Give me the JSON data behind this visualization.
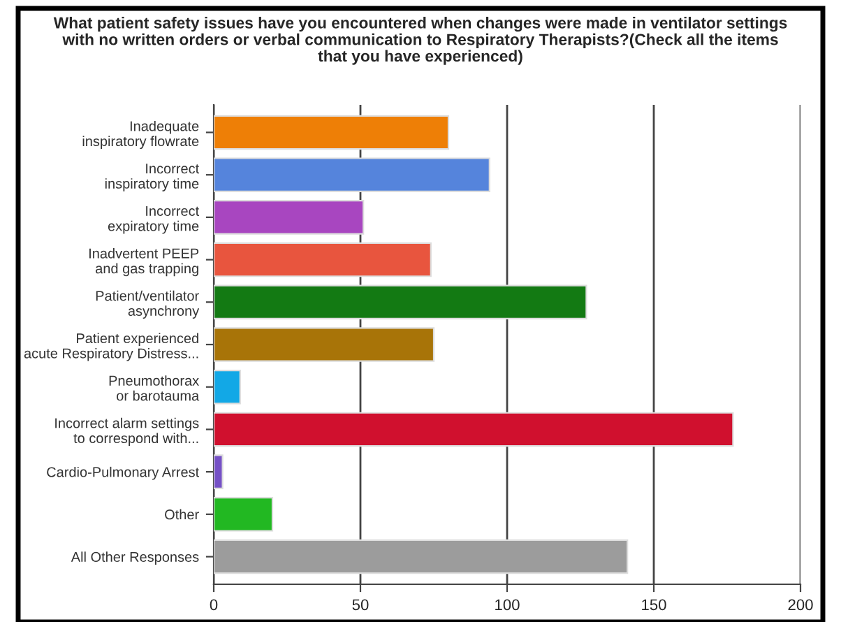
{
  "chart_data": {
    "type": "bar",
    "orientation": "horizontal",
    "title": "What patient safety issues have you encountered when changes were made in ventilator settings\nwith no written orders or verbal communication to Respiratory Therapists?(Check all the items\nthat you have experienced)",
    "categories": [
      "Inadequate\ninspiratory flowrate",
      "Incorrect\ninspiratory time",
      "Incorrect\nexpiratory time",
      "Inadvertent PEEP\nand gas trapping",
      "Patient/ventilator\nasynchrony",
      "Patient experienced\nacute Respiratory Distress...",
      "Pneumothorax\nor barotauma",
      "Incorrect alarm settings\nto correspond with...",
      "Cardio-Pulmonary Arrest",
      "Other",
      "All Other Responses"
    ],
    "values": [
      80,
      94,
      51,
      74,
      127,
      75,
      9,
      177,
      3,
      20,
      141
    ],
    "colors": [
      "#ee7f06",
      "#5584dc",
      "#a846c0",
      "#e8553e",
      "#137a13",
      "#a87408",
      "#12a8e6",
      "#d0102e",
      "#7550c6",
      "#22b822",
      "#9c9c9c"
    ],
    "xlim": [
      0,
      200
    ],
    "xticks": [
      0,
      50,
      100,
      150,
      200
    ],
    "grid": "x"
  }
}
